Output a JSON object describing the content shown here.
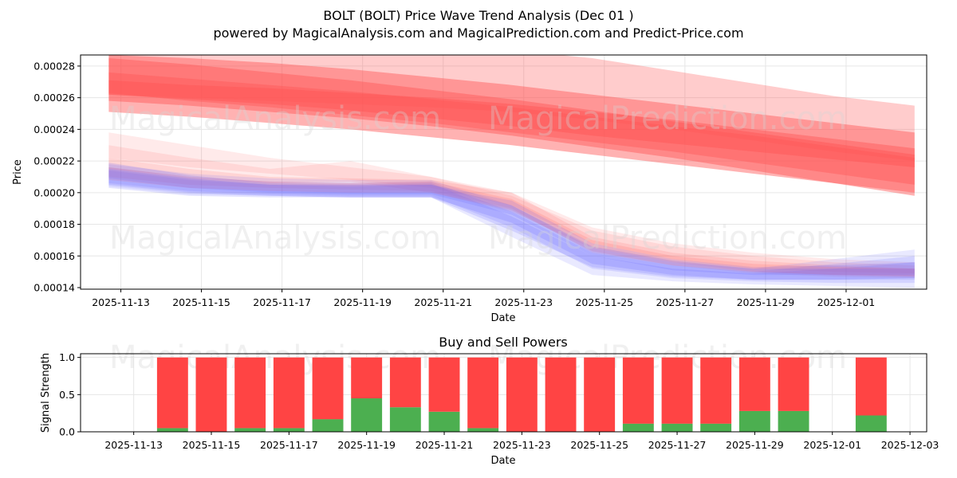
{
  "title_line1": "BOLT (BOLT) Price Wave Trend Analysis (Dec 01 )",
  "title_line2": "powered by MagicalAnalysis.com and MagicalPrediction.com and Predict-Price.com",
  "watermarks": [
    "MagicalAnalysis.com",
    "MagicalPrediction.com"
  ],
  "colors": {
    "red": "#ff5555",
    "blue": "#6666ff",
    "buy": "#4caf50",
    "sell": "#ff4444",
    "grid": "#e6e6e6"
  },
  "chart_data": [
    {
      "type": "area",
      "title": "",
      "xlabel": "Date",
      "ylabel": "Price",
      "xlim": [
        "2025-11-12.0",
        "2025-12-03.0"
      ],
      "ylim": [
        0.000139,
        0.000287
      ],
      "x_ticks": [
        "2025-11-13",
        "2025-11-15",
        "2025-11-17",
        "2025-11-19",
        "2025-11-21",
        "2025-11-23",
        "2025-11-25",
        "2025-11-27",
        "2025-11-29",
        "2025-12-01"
      ],
      "y_ticks": [
        "0.00014",
        "0.00016",
        "0.00018",
        "0.00020",
        "0.00022",
        "0.00024",
        "0.00026",
        "0.00028"
      ],
      "x_days": [
        0.7,
        2.7,
        4.7,
        6.7,
        8.7,
        10.7,
        12.7,
        14.7,
        16.7,
        18.7,
        20.7
      ],
      "red_bands": [
        {
          "upper": [
            0.000287,
            0.000285,
            0.000282,
            0.000278,
            0.000273,
            0.000268,
            0.000262,
            0.000256,
            0.00025,
            0.000244,
            0.000238
          ],
          "lower": [
            0.000262,
            0.000259,
            0.000256,
            0.000252,
            0.000247,
            0.000242,
            0.000236,
            0.000231,
            0.000226,
            0.000221,
            0.000216
          ],
          "opacity": 0.45
        },
        {
          "upper": [
            0.000285,
            0.000281,
            0.000276,
            0.000271,
            0.000265,
            0.000259,
            0.000252,
            0.000245,
            0.000238,
            0.000231,
            0.000224
          ],
          "lower": [
            0.000251,
            0.000248,
            0.000244,
            0.00024,
            0.000235,
            0.00023,
            0.000224,
            0.000218,
            0.000212,
            0.000206,
            0.0002
          ],
          "opacity": 0.45
        },
        {
          "upper": [
            0.000271,
            0.000268,
            0.000266,
            0.000263,
            0.00026,
            0.000256,
            0.000251,
            0.000246,
            0.00024,
            0.000234,
            0.000228
          ],
          "lower": [
            0.000258,
            0.000255,
            0.000251,
            0.000247,
            0.000242,
            0.000236,
            0.000229,
            0.000222,
            0.000214,
            0.000206,
            0.000198
          ],
          "opacity": 0.45
        },
        {
          "upper": [
            0.00029,
            0.00029,
            0.00029,
            0.00029,
            0.00029,
            0.00029,
            0.000285,
            0.000277,
            0.000269,
            0.000261,
            0.000255
          ],
          "lower": [
            0.000262,
            0.00026,
            0.000258,
            0.000256,
            0.000254,
            0.000251,
            0.000246,
            0.00024,
            0.000233,
            0.000226,
            0.00022
          ],
          "opacity": 0.3
        },
        {
          "upper": [
            0.000276,
            0.000272,
            0.000268,
            0.000264,
            0.000259,
            0.000254,
            0.000248,
            0.000242,
            0.000236,
            0.000229,
            0.000222
          ],
          "lower": [
            0.000263,
            0.000258,
            0.000254,
            0.000249,
            0.000244,
            0.000238,
            0.000232,
            0.000226,
            0.000219,
            0.000212,
            0.000205
          ],
          "opacity": 0.4
        }
      ],
      "wave_bands": [
        {
          "color": "red",
          "upper": [
            0.000238,
            0.00023,
            0.000222,
            0.000216,
            0.00021,
            0.0002,
            0.000178,
            0.000168,
            0.000162,
            0.000158,
            0.000156
          ],
          "lower": [
            0.000222,
            0.000216,
            0.000212,
            0.000208,
            0.000203,
            0.000192,
            0.000168,
            0.000158,
            0.000152,
            0.00015,
            0.000149
          ],
          "opacity": 0.12
        },
        {
          "color": "red",
          "upper": [
            0.00023,
            0.000222,
            0.000215,
            0.00022,
            0.00021,
            0.000198,
            0.000176,
            0.000166,
            0.00016,
            0.000156,
            0.000154
          ],
          "lower": [
            0.000215,
            0.00021,
            0.000206,
            0.000207,
            0.0002,
            0.000188,
            0.000165,
            0.000156,
            0.00015,
            0.000148,
            0.000147
          ],
          "opacity": 0.12
        },
        {
          "color": "red",
          "upper": [
            0.000222,
            0.000215,
            0.00021,
            0.000209,
            0.000208,
            0.0002,
            0.000172,
            0.000162,
            0.000157,
            0.000154,
            0.000152
          ],
          "lower": [
            0.00021,
            0.000205,
            0.000203,
            0.000202,
            0.000201,
            0.00019,
            0.000162,
            0.000154,
            0.000149,
            0.000147,
            0.000146
          ],
          "opacity": 0.15
        },
        {
          "color": "blue",
          "upper": [
            0.000218,
            0.000212,
            0.000209,
            0.000208,
            0.000208,
            0.000192,
            0.000165,
            0.000156,
            0.000152,
            0.000158,
            0.000164
          ],
          "lower": [
            0.000204,
            0.000199,
            0.000198,
            0.000197,
            0.000197,
            0.000172,
            0.000148,
            0.000144,
            0.000142,
            0.000141,
            0.00014
          ],
          "opacity": 0.14
        },
        {
          "color": "blue",
          "upper": [
            0.000216,
            0.00021,
            0.000207,
            0.000206,
            0.000207,
            0.000188,
            0.000162,
            0.000154,
            0.00015,
            0.000155,
            0.00016
          ],
          "lower": [
            0.000206,
            0.000201,
            0.000199,
            0.000198,
            0.000198,
            0.000178,
            0.000152,
            0.000146,
            0.000144,
            0.000143,
            0.000143
          ],
          "opacity": 0.16
        },
        {
          "color": "blue",
          "upper": [
            0.000214,
            0.000208,
            0.000205,
            0.000205,
            0.000206,
            0.000185,
            0.00016,
            0.000152,
            0.000149,
            0.000152,
            0.000156
          ],
          "lower": [
            0.000203,
            0.000198,
            0.000197,
            0.000197,
            0.000197,
            0.000176,
            0.000153,
            0.000147,
            0.000145,
            0.000145,
            0.000145
          ],
          "opacity": 0.18
        },
        {
          "color": "blue",
          "upper": [
            0.000219,
            0.000211,
            0.000206,
            0.000205,
            0.000205,
            0.000195,
            0.000168,
            0.000158,
            0.000153,
            0.000154,
            0.000156
          ],
          "lower": [
            0.000209,
            0.000203,
            0.0002,
            0.000199,
            0.000199,
            0.000186,
            0.00016,
            0.000151,
            0.000148,
            0.000148,
            0.000148
          ],
          "opacity": 0.18
        },
        {
          "color": "red",
          "upper": [
            0.000216,
            0.00021,
            0.000207,
            0.000206,
            0.000207,
            0.000196,
            0.00017,
            0.00016,
            0.000155,
            0.000153,
            0.000152
          ],
          "lower": [
            0.000208,
            0.000203,
            0.000201,
            0.0002,
            0.0002,
            0.000189,
            0.000163,
            0.000154,
            0.00015,
            0.000148,
            0.000147
          ],
          "opacity": 0.16
        },
        {
          "color": "blue",
          "upper": [
            0.000215,
            0.000209,
            0.000205,
            0.000204,
            0.000205,
            0.000192,
            0.000166,
            0.000157,
            0.000152,
            0.000152,
            0.000152
          ],
          "lower": [
            0.000205,
            0.0002,
            0.000198,
            0.000197,
            0.000197,
            0.000181,
            0.000155,
            0.000148,
            0.000145,
            0.000145,
            0.000146
          ],
          "opacity": 0.2
        }
      ]
    },
    {
      "type": "bar",
      "title": "Buy and Sell Powers",
      "xlabel": "Date",
      "ylabel": "Signal Strength",
      "ylim": [
        0,
        1.05
      ],
      "y_ticks": [
        "0.0",
        "0.5",
        "1.0"
      ],
      "x_ticks": [
        "2025-11-13",
        "2025-11-15",
        "2025-11-17",
        "2025-11-19",
        "2025-11-21",
        "2025-11-23",
        "2025-11-25",
        "2025-11-27",
        "2025-11-29",
        "2025-12-01",
        "2025-12-03"
      ],
      "categories": [
        "2025-11-14",
        "2025-11-15",
        "2025-11-16",
        "2025-11-17",
        "2025-11-18",
        "2025-11-19",
        "2025-11-20",
        "2025-11-21",
        "2025-11-22",
        "2025-11-23",
        "2025-11-24",
        "2025-11-25",
        "2025-11-26",
        "2025-11-27",
        "2025-11-28",
        "2025-11-29",
        "2025-11-30",
        "2025-12-02"
      ],
      "series": [
        {
          "name": "Buy",
          "values": [
            0.05,
            0.0,
            0.05,
            0.05,
            0.17,
            0.45,
            0.33,
            0.27,
            0.05,
            0.0,
            0.0,
            0.0,
            0.11,
            0.11,
            0.11,
            0.28,
            0.28,
            0.22
          ]
        },
        {
          "name": "Sell",
          "values": [
            0.95,
            1.0,
            0.95,
            0.95,
            0.83,
            0.55,
            0.67,
            0.73,
            0.95,
            1.0,
            1.0,
            1.0,
            0.89,
            0.89,
            0.89,
            0.72,
            0.72,
            0.78
          ]
        }
      ]
    }
  ]
}
